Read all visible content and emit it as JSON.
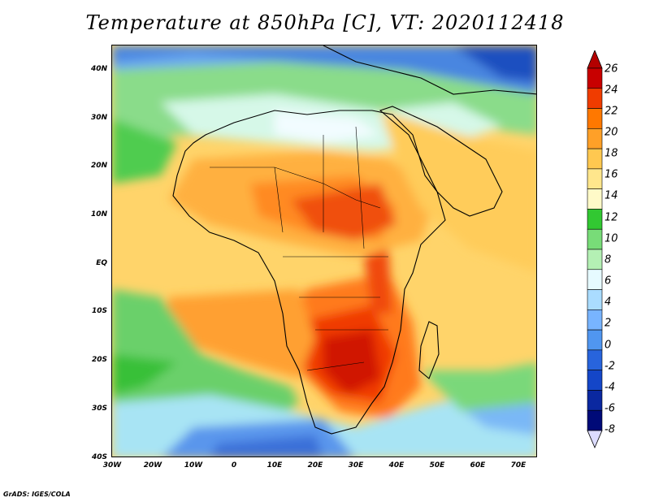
{
  "title": "Temperature at 850hPa [C], VT: 2020112418",
  "credit": "GrADS: IGES/COLA",
  "map": {
    "lon_range": [
      -30,
      75
    ],
    "lat_range": [
      -40,
      45
    ],
    "lat_ticks": [
      {
        "value": 40,
        "label": "40N"
      },
      {
        "value": 30,
        "label": "30N"
      },
      {
        "value": 20,
        "label": "20N"
      },
      {
        "value": 10,
        "label": "10N"
      },
      {
        "value": 0,
        "label": "EQ"
      },
      {
        "value": -10,
        "label": "10S"
      },
      {
        "value": -20,
        "label": "20S"
      },
      {
        "value": -30,
        "label": "30S"
      },
      {
        "value": -40,
        "label": "40S"
      }
    ],
    "lon_ticks": [
      {
        "value": -30,
        "label": "30W"
      },
      {
        "value": -20,
        "label": "20W"
      },
      {
        "value": -10,
        "label": "10W"
      },
      {
        "value": 0,
        "label": "0"
      },
      {
        "value": 10,
        "label": "10E"
      },
      {
        "value": 20,
        "label": "20E"
      },
      {
        "value": 30,
        "label": "30E"
      },
      {
        "value": 40,
        "label": "40E"
      },
      {
        "value": 50,
        "label": "50E"
      },
      {
        "value": 60,
        "label": "60E"
      },
      {
        "value": 70,
        "label": "70E"
      }
    ]
  },
  "colorbar": {
    "labels": [
      "26",
      "24",
      "22",
      "20",
      "18",
      "16",
      "14",
      "12",
      "10",
      "8",
      "6",
      "4",
      "2",
      "0",
      "-2",
      "-4",
      "-6",
      "-8"
    ],
    "colors": [
      "#c80000",
      "#f03c00",
      "#ff7800",
      "#ffa028",
      "#ffc850",
      "#ffe68c",
      "#fffac8",
      "#32c832",
      "#78dc78",
      "#b4f0b4",
      "#e6faff",
      "#aadcff",
      "#78b4ff",
      "#5096f0",
      "#2864dc",
      "#1446c8",
      "#0a28a0",
      "#000a78"
    ],
    "top_arrow_color": "#b40000",
    "bottom_arrow_color": "#dcdcff"
  }
}
